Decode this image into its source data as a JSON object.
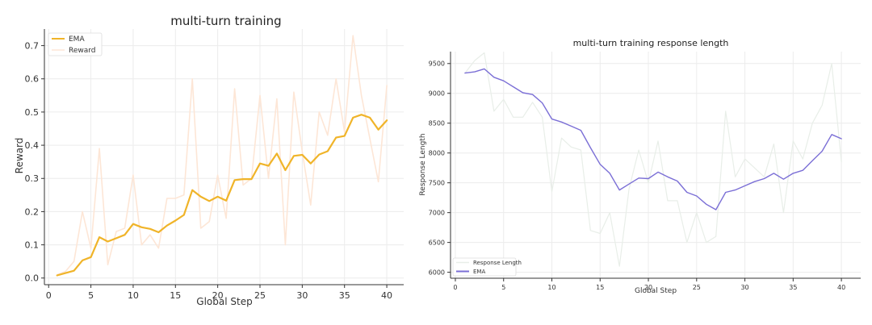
{
  "chart_data": [
    {
      "type": "line",
      "title": "multi-turn training",
      "xlabel": "Global Step",
      "ylabel": "Reward",
      "xlim": [
        -0.5,
        42
      ],
      "ylim": [
        -0.02,
        0.75
      ],
      "xticks": [
        0,
        5,
        10,
        15,
        20,
        25,
        30,
        35,
        40
      ],
      "yticks": [
        0.0,
        0.1,
        0.2,
        0.3,
        0.4,
        0.5,
        0.6,
        0.7
      ],
      "grid": true,
      "legend_position": "top-left",
      "x": [
        1,
        2,
        3,
        4,
        5,
        6,
        7,
        8,
        9,
        10,
        11,
        12,
        13,
        14,
        15,
        16,
        17,
        18,
        19,
        20,
        21,
        22,
        23,
        24,
        25,
        26,
        27,
        28,
        29,
        30,
        31,
        32,
        33,
        34,
        35,
        36,
        37,
        38,
        39,
        40
      ],
      "series": [
        {
          "name": "EMA",
          "color": "#f0b429",
          "values": [
            0.008,
            0.015,
            0.022,
            0.053,
            0.063,
            0.123,
            0.11,
            0.12,
            0.13,
            0.163,
            0.153,
            0.148,
            0.138,
            0.158,
            0.173,
            0.19,
            0.265,
            0.245,
            0.232,
            0.245,
            0.233,
            0.295,
            0.298,
            0.298,
            0.345,
            0.338,
            0.375,
            0.325,
            0.368,
            0.371,
            0.345,
            0.372,
            0.382,
            0.423,
            0.428,
            0.483,
            0.492,
            0.483,
            0.447,
            0.475
          ]
        },
        {
          "name": "Reward",
          "color": "#fde6d6",
          "values": [
            0.01,
            0.02,
            0.05,
            0.2,
            0.09,
            0.39,
            0.04,
            0.14,
            0.15,
            0.31,
            0.1,
            0.13,
            0.09,
            0.24,
            0.24,
            0.25,
            0.6,
            0.15,
            0.17,
            0.31,
            0.18,
            0.57,
            0.28,
            0.3,
            0.55,
            0.3,
            0.54,
            0.1,
            0.56,
            0.38,
            0.22,
            0.5,
            0.43,
            0.6,
            0.44,
            0.73,
            0.55,
            0.42,
            0.29,
            0.58
          ]
        }
      ]
    },
    {
      "type": "line",
      "title": "multi-turn training response length",
      "xlabel": "Global Step",
      "ylabel": "Response Length",
      "xlim": [
        -0.5,
        42
      ],
      "ylim": [
        5900,
        9700
      ],
      "xticks": [
        0,
        5,
        10,
        15,
        20,
        25,
        30,
        35,
        40
      ],
      "yticks": [
        6000,
        6500,
        7000,
        7500,
        8000,
        8500,
        9000,
        9500
      ],
      "grid": true,
      "legend_position": "bottom-left",
      "x": [
        1,
        2,
        3,
        4,
        5,
        6,
        7,
        8,
        9,
        10,
        11,
        12,
        13,
        14,
        15,
        16,
        17,
        18,
        19,
        20,
        21,
        22,
        23,
        24,
        25,
        26,
        27,
        28,
        29,
        30,
        31,
        32,
        33,
        34,
        35,
        36,
        37,
        38,
        39,
        40
      ],
      "series": [
        {
          "name": "Response Length",
          "color": "#e8eee8",
          "values": [
            9340,
            9550,
            9680,
            8700,
            8900,
            8600,
            8600,
            8850,
            8600,
            7350,
            8250,
            8100,
            8050,
            6700,
            6650,
            7000,
            6100,
            7400,
            8050,
            7500,
            8200,
            7200,
            7200,
            6500,
            7000,
            6500,
            6600,
            8700,
            7600,
            7900,
            7750,
            7600,
            8150,
            7000,
            8200,
            7900,
            8500,
            8800,
            9500,
            7850
          ]
        },
        {
          "name": "EMA",
          "color": "#7b6fd6",
          "values": [
            9340,
            9360,
            9410,
            9270,
            9210,
            9110,
            9010,
            8980,
            8840,
            8570,
            8520,
            8450,
            8380,
            8090,
            7810,
            7660,
            7380,
            7480,
            7580,
            7570,
            7680,
            7600,
            7530,
            7340,
            7280,
            7140,
            7050,
            7340,
            7380,
            7450,
            7520,
            7570,
            7660,
            7560,
            7660,
            7710,
            7870,
            8030,
            8310,
            8240
          ]
        }
      ]
    }
  ]
}
